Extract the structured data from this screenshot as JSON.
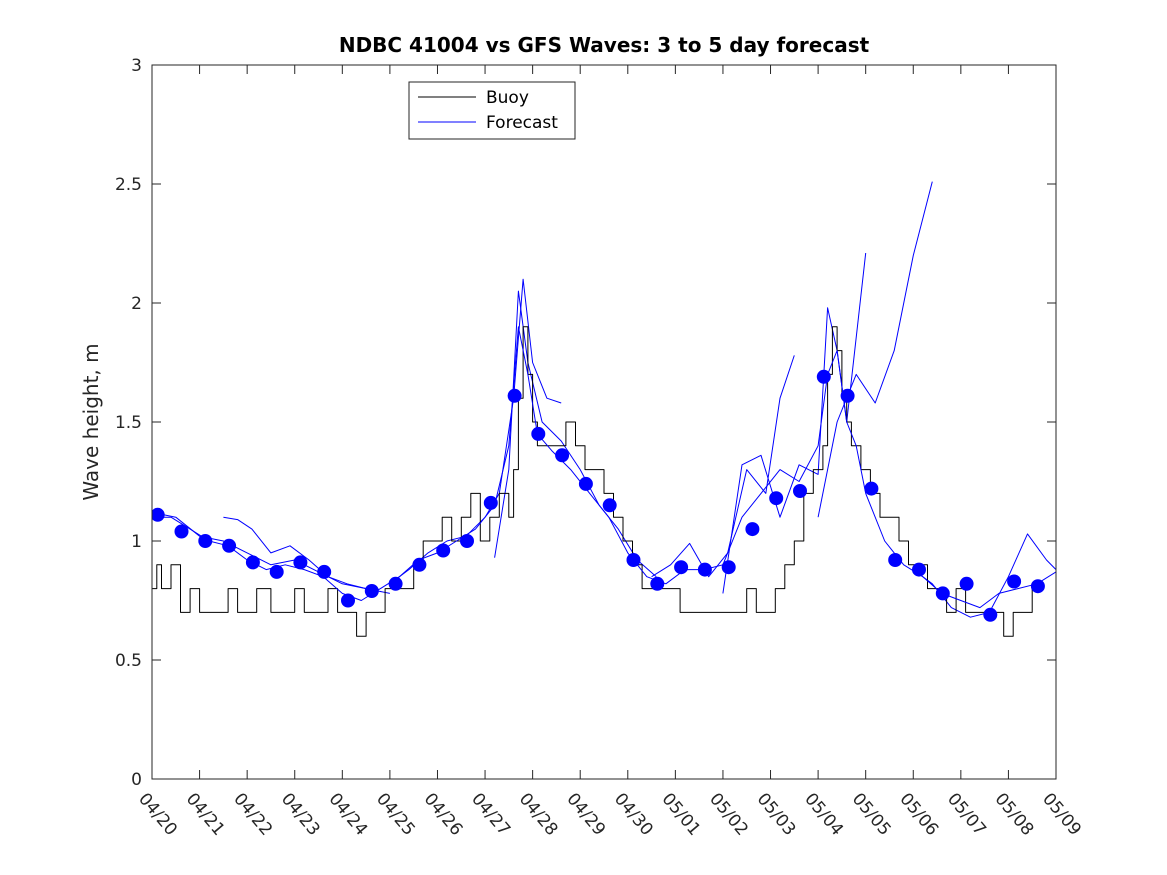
{
  "chart_data": {
    "type": "line",
    "title": "NDBC 41004 vs GFS Waves: 3 to 5 day forecast",
    "xlabel": "",
    "ylabel": "Wave height, m",
    "x_tick_labels": [
      "04/20",
      "04/21",
      "04/22",
      "04/23",
      "04/24",
      "04/25",
      "04/26",
      "04/27",
      "04/28",
      "04/29",
      "04/30",
      "05/01",
      "05/02",
      "05/03",
      "05/04",
      "05/05",
      "05/06",
      "05/07",
      "05/08",
      "05/09"
    ],
    "xlim": [
      0,
      19
    ],
    "ylim": [
      0,
      3
    ],
    "y_ticks": [
      0,
      0.5,
      1,
      1.5,
      2,
      2.5,
      3
    ],
    "y_tick_labels": [
      "0",
      "0.5",
      "1",
      "1.5",
      "2",
      "2.5",
      "3"
    ],
    "grid": false,
    "legend": {
      "position": "top-left-inside",
      "entries": [
        {
          "label": "Buoy",
          "color": "#000000"
        },
        {
          "label": "Forecast",
          "color": "#0000ff"
        }
      ]
    },
    "colors": {
      "buoy": "#000000",
      "forecast": "#0000ff",
      "markers": "#0000ff"
    },
    "series": [
      {
        "name": "Buoy",
        "kind": "line",
        "color": "#000000",
        "x": [
          0,
          0.1,
          0.2,
          0.4,
          0.6,
          0.8,
          1.0,
          1.3,
          1.6,
          1.8,
          2.0,
          2.2,
          2.5,
          2.8,
          3.0,
          3.2,
          3.5,
          3.7,
          3.9,
          4.1,
          4.3,
          4.5,
          4.7,
          4.9,
          5.1,
          5.3,
          5.5,
          5.7,
          5.9,
          6.1,
          6.3,
          6.5,
          6.7,
          6.9,
          7.1,
          7.3,
          7.5,
          7.6,
          7.7,
          7.8,
          7.9,
          8.0,
          8.1,
          8.2,
          8.3,
          8.5,
          8.7,
          8.9,
          9.1,
          9.3,
          9.5,
          9.7,
          9.9,
          10.1,
          10.3,
          10.5,
          10.7,
          10.9,
          11.1,
          11.3,
          11.5,
          11.7,
          11.9,
          12.1,
          12.3,
          12.5,
          12.7,
          12.9,
          13.1,
          13.3,
          13.5,
          13.7,
          13.9,
          14.0,
          14.1,
          14.2,
          14.3,
          14.4,
          14.5,
          14.6,
          14.7,
          14.9,
          15.1,
          15.3,
          15.5,
          15.7,
          15.9,
          16.1,
          16.3,
          16.5,
          16.7,
          16.9,
          17.1,
          17.3,
          17.5,
          17.7,
          17.9,
          18.1,
          18.3,
          18.5
        ],
        "y": [
          0.8,
          0.9,
          0.8,
          0.9,
          0.7,
          0.8,
          0.7,
          0.7,
          0.8,
          0.7,
          0.7,
          0.8,
          0.7,
          0.7,
          0.8,
          0.7,
          0.7,
          0.8,
          0.7,
          0.7,
          0.6,
          0.7,
          0.7,
          0.8,
          0.8,
          0.8,
          0.9,
          1.0,
          1.0,
          1.1,
          1.0,
          1.1,
          1.2,
          1.0,
          1.1,
          1.2,
          1.1,
          1.3,
          1.6,
          1.9,
          1.7,
          1.5,
          1.4,
          1.4,
          1.4,
          1.4,
          1.5,
          1.4,
          1.3,
          1.3,
          1.2,
          1.1,
          1.0,
          0.9,
          0.8,
          0.8,
          0.8,
          0.8,
          0.7,
          0.7,
          0.7,
          0.7,
          0.7,
          0.7,
          0.7,
          0.8,
          0.7,
          0.7,
          0.8,
          0.9,
          1.0,
          1.2,
          1.3,
          1.3,
          1.4,
          1.7,
          1.9,
          1.8,
          1.6,
          1.5,
          1.4,
          1.3,
          1.2,
          1.1,
          1.1,
          1.0,
          0.9,
          0.9,
          0.8,
          0.8,
          0.7,
          0.8,
          0.7,
          0.7,
          0.7,
          0.7,
          0.6,
          0.7,
          0.7,
          0.8
        ]
      },
      {
        "name": "Forecast",
        "kind": "line",
        "color": "#0000ff",
        "x": [
          0,
          0.4,
          0.8,
          1.2,
          1.6,
          2.0,
          2.4,
          2.8,
          3.2,
          3.6,
          4.0,
          4.4,
          4.8,
          5.2,
          5.6,
          6.0,
          6.4,
          6.8,
          7.2,
          7.5,
          7.7,
          7.9,
          8.1,
          8.4,
          8.8,
          9.2,
          9.6,
          10.0,
          10.4,
          10.8,
          11.2,
          11.6,
          12.0,
          12.4,
          12.8,
          13.2,
          13.6,
          14.0,
          14.2,
          14.4,
          14.6,
          14.8,
          15.0,
          15.4,
          15.8,
          16.2,
          16.6,
          17.0,
          17.4,
          17.8,
          18.2,
          18.6,
          19.0
        ],
        "y": [
          1.1,
          1.1,
          1.05,
          1.0,
          0.98,
          0.92,
          0.88,
          0.9,
          0.88,
          0.85,
          0.78,
          0.75,
          0.8,
          0.85,
          0.92,
          0.95,
          1.0,
          1.05,
          1.15,
          1.4,
          1.9,
          1.7,
          1.45,
          1.38,
          1.3,
          1.2,
          1.1,
          0.95,
          0.85,
          0.82,
          0.88,
          0.88,
          0.9,
          1.1,
          1.2,
          1.3,
          1.25,
          1.4,
          1.7,
          1.8,
          1.5,
          1.4,
          1.2,
          1.0,
          0.9,
          0.85,
          0.78,
          0.75,
          0.72,
          0.78,
          0.8,
          0.82,
          0.87
        ]
      },
      {
        "name": "",
        "kind": "markers",
        "color": "#0000ff",
        "x": [
          0.12,
          0.62,
          1.12,
          1.62,
          2.12,
          2.62,
          3.12,
          3.62,
          4.12,
          4.62,
          5.12,
          5.62,
          6.12,
          6.62,
          7.12,
          7.62,
          8.12,
          8.62,
          9.12,
          9.62,
          10.12,
          10.62,
          11.12,
          11.62,
          12.12,
          12.62,
          13.12,
          13.62,
          14.12,
          14.62,
          15.12,
          15.62,
          16.12,
          16.62,
          17.12,
          17.62,
          18.12,
          18.62
        ],
        "y": [
          1.11,
          1.04,
          1.0,
          0.98,
          0.91,
          0.87,
          0.91,
          0.87,
          0.75,
          0.79,
          0.82,
          0.9,
          0.96,
          1.0,
          1.16,
          1.61,
          1.45,
          1.36,
          1.24,
          1.15,
          0.92,
          0.82,
          0.89,
          0.88,
          0.89,
          1.05,
          1.18,
          1.21,
          1.69,
          1.61,
          1.22,
          0.92,
          0.88,
          0.78,
          0.82,
          0.69,
          0.83,
          0.81
        ]
      }
    ],
    "extra_forecast_runs": [
      {
        "x": [
          0,
          0.5,
          1.0,
          1.5,
          2.0,
          2.5,
          3.0,
          3.5,
          4.0,
          4.5,
          5.0
        ],
        "y": [
          1.12,
          1.1,
          1.02,
          1.0,
          0.95,
          0.9,
          0.92,
          0.87,
          0.82,
          0.8,
          0.78
        ]
      },
      {
        "x": [
          1.5,
          1.8,
          2.1,
          2.5,
          2.9,
          3.3,
          3.7,
          4.1,
          4.5
        ],
        "y": [
          1.1,
          1.09,
          1.05,
          0.95,
          0.98,
          0.92,
          0.85,
          0.82,
          0.8
        ]
      },
      {
        "x": [
          5.0,
          5.4,
          5.8,
          6.2,
          6.6,
          7.0,
          7.3,
          7.6,
          7.8,
          8.0,
          8.3,
          8.6
        ],
        "y": [
          0.82,
          0.88,
          0.95,
          1.0,
          1.02,
          1.1,
          1.2,
          1.6,
          2.1,
          1.75,
          1.6,
          1.58
        ]
      },
      {
        "x": [
          7.2,
          7.5,
          7.7,
          7.9,
          8.2,
          8.6,
          9.0,
          9.4,
          9.8,
          10.2,
          10.6
        ],
        "y": [
          0.93,
          1.3,
          2.05,
          1.75,
          1.5,
          1.42,
          1.3,
          1.15,
          1.05,
          0.92,
          0.85
        ]
      },
      {
        "x": [
          10.5,
          10.9,
          11.3,
          11.7,
          12.1,
          12.5,
          12.9,
          13.2,
          13.5
        ],
        "y": [
          0.85,
          0.9,
          0.99,
          0.85,
          0.95,
          1.3,
          1.2,
          1.6,
          1.78
        ]
      },
      {
        "x": [
          12.0,
          12.4,
          12.8,
          13.2,
          13.6,
          14.0,
          14.2,
          14.4,
          14.6,
          15.0
        ],
        "y": [
          0.78,
          1.32,
          1.36,
          1.1,
          1.32,
          1.28,
          1.98,
          1.8,
          1.5,
          2.21
        ]
      },
      {
        "x": [
          14.0,
          14.4,
          14.8,
          15.2,
          15.6,
          16.0,
          16.4
        ],
        "y": [
          1.1,
          1.5,
          1.7,
          1.58,
          1.8,
          2.2,
          2.51
        ]
      },
      {
        "x": [
          16.0,
          16.4,
          16.8,
          17.2,
          17.6,
          18.0,
          18.4,
          18.8,
          19.0
        ],
        "y": [
          0.88,
          0.82,
          0.72,
          0.68,
          0.7,
          0.85,
          1.03,
          0.92,
          0.88
        ]
      }
    ]
  }
}
